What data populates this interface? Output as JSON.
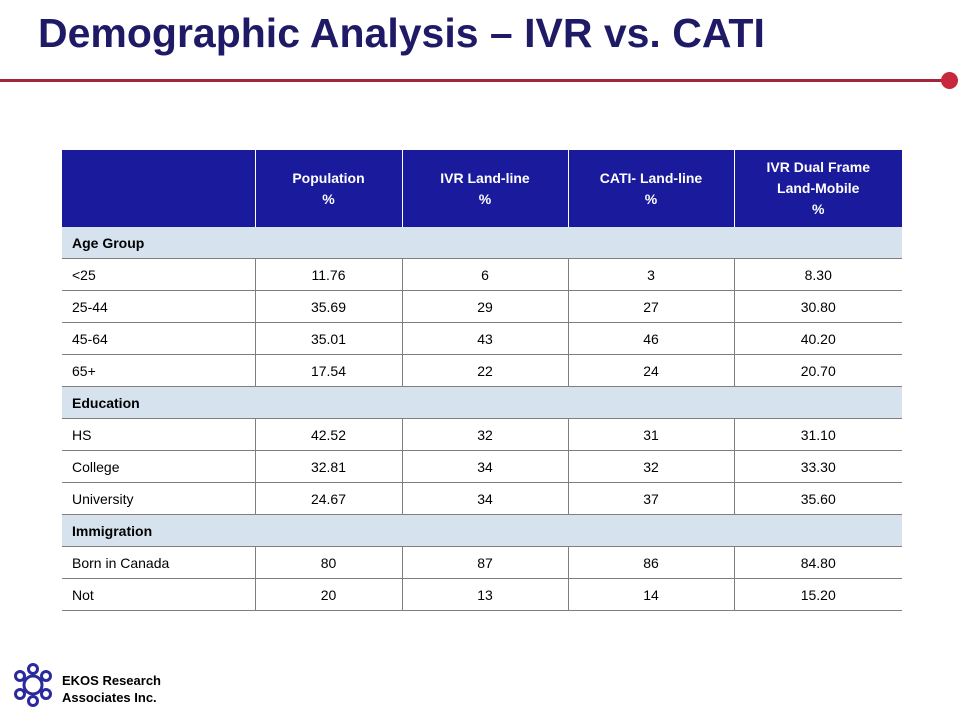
{
  "slide": {
    "title": "Demographic Analysis – IVR vs. CATI",
    "accent_color": "#a3243b",
    "title_color": "#1f1a66"
  },
  "table": {
    "header_color": "#1a1a9c",
    "section_color": "#d6e3ee",
    "columns": [
      {
        "lines": [
          ""
        ]
      },
      {
        "lines": [
          "Population",
          "%"
        ]
      },
      {
        "lines": [
          "IVR Land-line",
          "%"
        ]
      },
      {
        "lines": [
          "CATI- Land-line",
          "%"
        ]
      },
      {
        "lines": [
          "IVR Dual Frame",
          "Land-Mobile",
          "%"
        ]
      }
    ],
    "sections": [
      {
        "name": "Age Group",
        "rows": [
          [
            "<25",
            "11.76",
            "6",
            "3",
            "8.30"
          ],
          [
            "25-44",
            "35.69",
            "29",
            "27",
            "30.80"
          ],
          [
            "45-64",
            "35.01",
            "43",
            "46",
            "40.20"
          ],
          [
            "65+",
            "17.54",
            "22",
            "24",
            "20.70"
          ]
        ]
      },
      {
        "name": "Education",
        "rows": [
          [
            "HS",
            "42.52",
            "32",
            "31",
            "31.10"
          ],
          [
            "College",
            "32.81",
            "34",
            "32",
            "33.30"
          ],
          [
            "University",
            "24.67",
            "34",
            "37",
            "35.60"
          ]
        ]
      },
      {
        "name": "Immigration",
        "rows": [
          [
            "Born in Canada",
            "80",
            "87",
            "86",
            "84.80"
          ],
          [
            "Not",
            "20",
            "13",
            "14",
            "15.20"
          ]
        ]
      }
    ]
  },
  "footer": {
    "logo_icon": "ekos-logo-icon",
    "company_line1": "EKOS Research",
    "company_line2": "Associates Inc."
  }
}
